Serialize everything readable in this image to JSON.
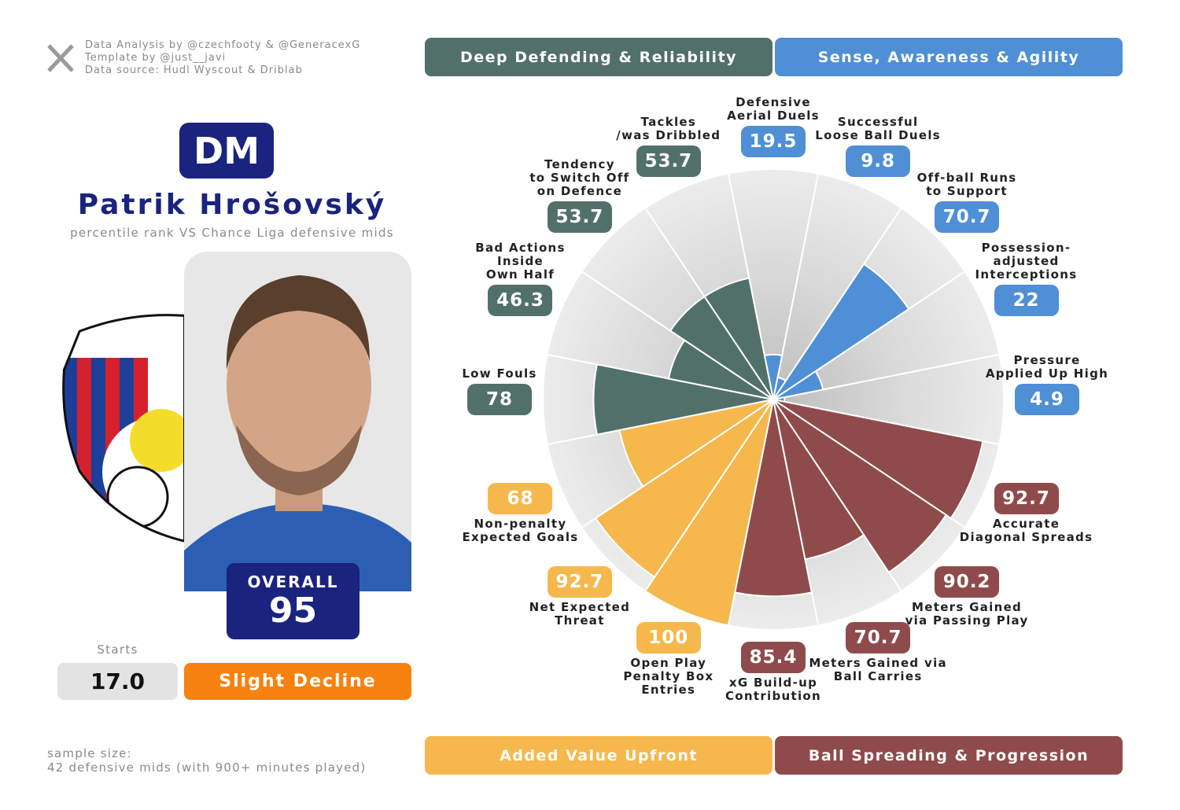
{
  "credits": [
    "Data Analysis by @czechfooty & @GeneracexG",
    "Template by @just__javi",
    "Data source: Hudl Wyscout & Driblab"
  ],
  "position": "DM",
  "player": "Patrik Hrošovský",
  "subtitle": "percentile rank VS Chance Liga defensive mids",
  "overall": {
    "label": "OVERALL",
    "value": 95
  },
  "starts": {
    "label": "Starts",
    "value": "17.0"
  },
  "trend": "Slight Decline",
  "sample_size": [
    "sample size:",
    "42 defensive mids (with 900+ minutes played)"
  ],
  "chart_data": {
    "type": "pizza",
    "categories": [
      "Defensive\nAerial Duels",
      "Successful\nLoose Ball Duels",
      "Off-ball Runs\nto Support",
      "Possession-adjusted\nInterceptions",
      "Pressure\nApplied Up High",
      "Accurate\nDiagonal Spreads",
      "Meters Gained\nvia Passing Play",
      "Meters Gained via\nBall Carries",
      "xG Build-up\nContribution",
      "Open Play\nPenalty Box\nEntries",
      "Net Expected\nThreat",
      "Non-penalty\nExpected Goals",
      "Low Fouls",
      "Bad Actions\nInside\nOwn Half",
      "Tendency\nto Switch Off\non Defence",
      "Tackles\n/was Dribbled"
    ],
    "values": [
      19.5,
      9.8,
      70.7,
      22,
      4.9,
      92.7,
      90.2,
      70.7,
      85.4,
      100,
      92.7,
      68,
      78,
      46.3,
      53.7,
      53.7
    ],
    "colors": [
      "#4f8fd6",
      "#4f8fd6",
      "#4f8fd6",
      "#4f8fd6",
      "#4f8fd6",
      "#8f4b4b",
      "#8f4b4b",
      "#8f4b4b",
      "#8f4b4b",
      "#f6b84d",
      "#f6b84d",
      "#f6b84d",
      "#52706a",
      "#52706a",
      "#52706a",
      "#52706a"
    ],
    "ylim": [
      0,
      100
    ],
    "legend": [
      {
        "name": "Deep Defending & Reliability",
        "color": "#52706a"
      },
      {
        "name": "Sense, Awareness & Agility",
        "color": "#4f8fd6"
      },
      {
        "name": "Added Value Upfront",
        "color": "#f6b84d"
      },
      {
        "name": "Ball Spreading & Progression",
        "color": "#8f4b4b"
      }
    ]
  }
}
